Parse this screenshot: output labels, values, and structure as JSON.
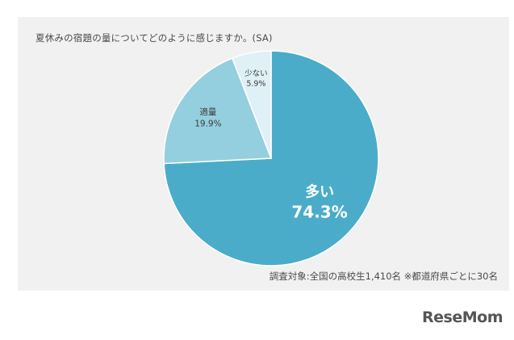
{
  "chart_data": {
    "type": "pie",
    "title": "夏休みの宿題の量についてどのように感じますか。(SA)",
    "slices": [
      {
        "label": "多い",
        "value": 74.3,
        "value_label": "74.3%",
        "color": "#4aacc8"
      },
      {
        "label": "適量",
        "value": 19.9,
        "value_label": "19.9%",
        "color": "#94cfdf"
      },
      {
        "label": "少ない",
        "value": 5.9,
        "value_label": "5.9%",
        "color": "#dff0f6"
      }
    ],
    "start": "12 o'clock",
    "direction": "clockwise",
    "footnote": "調査対象:全国の高校生1,410名 ※都道府県ごとに30名"
  },
  "logo": {
    "text": "ReseMom"
  }
}
